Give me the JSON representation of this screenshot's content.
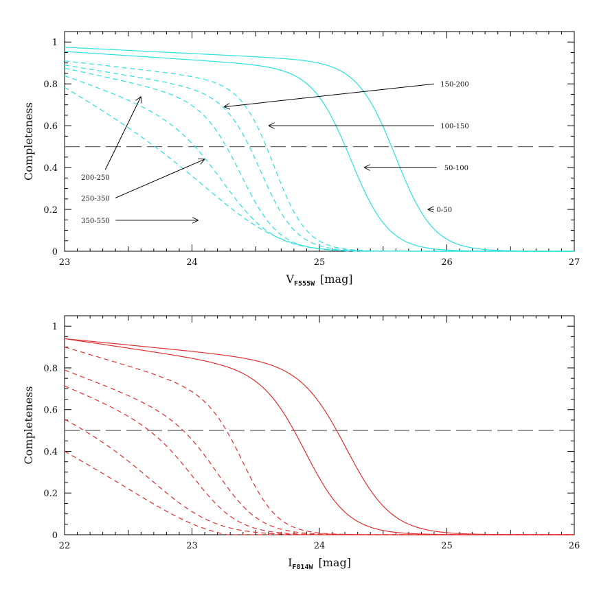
{
  "chart_data": [
    {
      "type": "line",
      "xlabel_main": "V",
      "xlabel_sub": "F555W",
      "xlabel_unit": "[mag]",
      "ylabel": "Completeness",
      "xlim": [
        23,
        27
      ],
      "ylim": [
        0,
        1.05
      ],
      "xticks": [
        23,
        24,
        25,
        26,
        27
      ],
      "yticks": [
        0,
        0.2,
        0.4,
        0.6,
        0.8,
        1
      ],
      "ytick_labels": [
        "0",
        "0.2",
        "0.4",
        "0.6",
        "0.8",
        "1"
      ],
      "grid": false,
      "color": "#2ee0e0",
      "reference_line": {
        "y": 0.5,
        "style": "long-dash",
        "color": "#666666"
      },
      "series": [
        {
          "name": "0-50",
          "style": "solid",
          "a": 0.975,
          "b": 0.03,
          "m50": 25.6,
          "w": 0.15
        },
        {
          "name": "50-100",
          "style": "solid",
          "a": 0.955,
          "b": 0.04,
          "m50": 25.25,
          "w": 0.15
        },
        {
          "name": "100-150",
          "style": "dashed",
          "a": 0.91,
          "b": 0.07,
          "m50": 24.65,
          "w": 0.13
        },
        {
          "name": "150-200",
          "style": "dashed",
          "a": 0.89,
          "b": 0.1,
          "m50": 24.55,
          "w": 0.14
        },
        {
          "name": "200-250",
          "style": "dashed",
          "a": 0.875,
          "b": 0.13,
          "m50": 24.4,
          "w": 0.15
        },
        {
          "name": "250-350",
          "style": "dashed",
          "a": 0.84,
          "b": 0.21,
          "m50": 24.3,
          "w": 0.2
        },
        {
          "name": "350-550",
          "style": "dashed",
          "a": 0.79,
          "b": 0.35,
          "m50": 24.45,
          "w": 0.3,
          "x0": 23.0
        }
      ],
      "annotations": [
        {
          "text": "150-200",
          "label_x": 25.95,
          "label_y": 0.8,
          "arrow_from_x": 25.9,
          "arrow_from_y": 0.8,
          "arrow_to_x": 24.25,
          "arrow_to_y": 0.69
        },
        {
          "text": "100-150",
          "label_x": 25.95,
          "label_y": 0.6,
          "arrow_from_x": 25.9,
          "arrow_from_y": 0.6,
          "arrow_to_x": 24.6,
          "arrow_to_y": 0.6
        },
        {
          "text": "50-100",
          "label_x": 25.98,
          "label_y": 0.4,
          "arrow_from_x": 25.92,
          "arrow_from_y": 0.4,
          "arrow_to_x": 25.35,
          "arrow_to_y": 0.4
        },
        {
          "text": "0-50",
          "label_x": 25.92,
          "label_y": 0.2,
          "arrow_from_x": 25.9,
          "arrow_from_y": 0.2,
          "arrow_to_x": 25.85,
          "arrow_to_y": 0.2
        },
        {
          "text": "200-250",
          "label_x": 23.13,
          "label_y": 0.355,
          "arrow_from_x": 23.32,
          "arrow_from_y": 0.39,
          "arrow_to_x": 23.6,
          "arrow_to_y": 0.74
        },
        {
          "text": "250-350",
          "label_x": 23.13,
          "label_y": 0.255,
          "arrow_from_x": 23.4,
          "arrow_from_y": 0.255,
          "arrow_to_x": 24.1,
          "arrow_to_y": 0.44
        },
        {
          "text": "350-550",
          "label_x": 23.13,
          "label_y": 0.148,
          "arrow_from_x": 23.4,
          "arrow_from_y": 0.148,
          "arrow_to_x": 24.05,
          "arrow_to_y": 0.148
        }
      ]
    },
    {
      "type": "line",
      "xlabel_main": "I",
      "xlabel_sub": "F814W",
      "xlabel_unit": "[mag]",
      "ylabel": "Completeness",
      "xlim": [
        22,
        26
      ],
      "ylim": [
        0,
        1.05
      ],
      "xticks": [
        22,
        23,
        24,
        25,
        26
      ],
      "yticks": [
        0,
        0.2,
        0.4,
        0.6,
        0.8,
        1
      ],
      "ytick_labels": [
        "0",
        "0.2",
        "0.4",
        "0.6",
        "0.8",
        "1"
      ],
      "grid": false,
      "color": "#e03030",
      "reference_line": {
        "y": 0.5,
        "style": "long-dash",
        "color": "#666666"
      },
      "series": [
        {
          "style": "solid",
          "a": 0.94,
          "b": 0.06,
          "m50": 24.22,
          "w": 0.18
        },
        {
          "style": "solid",
          "a": 0.94,
          "b": 0.09,
          "m50": 23.9,
          "w": 0.17
        },
        {
          "style": "dashed",
          "a": 0.9,
          "b": 0.18,
          "m50": 23.42,
          "w": 0.14
        },
        {
          "style": "dashed",
          "a": 0.79,
          "b": 0.23,
          "m50": 23.25,
          "w": 0.17
        },
        {
          "style": "dashed",
          "a": 0.715,
          "b": 0.25,
          "m50": 23.08,
          "w": 0.18
        },
        {
          "style": "dashed",
          "a": 0.57,
          "b": 0.28,
          "m50": 22.88,
          "w": 0.25
        },
        {
          "style": "dashed",
          "a": 0.41,
          "b": 0.32,
          "m50": 23.1,
          "w": 0.3,
          "x0": 22.0
        }
      ],
      "annotations": []
    }
  ]
}
